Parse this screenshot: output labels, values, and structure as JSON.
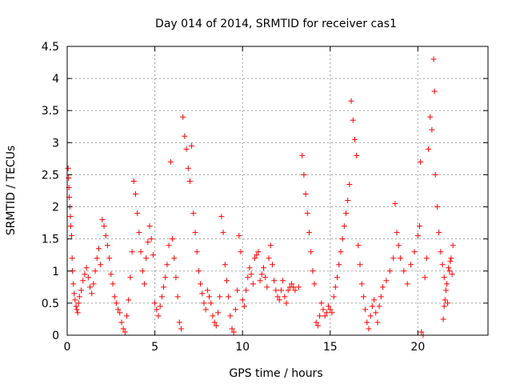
{
  "chart_data": {
    "type": "scatter",
    "title": "Day 014 of 2014, SRMTID for receiver cas1",
    "xlabel": "GPS time / hours",
    "ylabel": "SRMTID / TECUs",
    "xlim": [
      0,
      24
    ],
    "ylim": [
      0,
      4.5
    ],
    "grid": true,
    "marker": "+",
    "color": "#ff0000",
    "x_ticks": [
      0,
      5,
      10,
      15,
      20
    ],
    "x_tick_labels": [
      "0",
      "5",
      "10",
      "15",
      "20"
    ],
    "y_ticks": [
      0,
      0.5,
      1,
      1.5,
      2,
      2.5,
      3,
      3.5,
      4,
      4.5
    ],
    "y_tick_labels": [
      "0",
      "0.5",
      "1",
      "1.5",
      "2",
      "2.5",
      "3",
      "3.5",
      "4",
      "4.5"
    ],
    "series": [
      {
        "name": "SRMTID",
        "points": [
          [
            0.05,
            2.6
          ],
          [
            0.08,
            2.45
          ],
          [
            0.1,
            2.3
          ],
          [
            0.12,
            2.15
          ],
          [
            0.15,
            2.0
          ],
          [
            0.18,
            1.85
          ],
          [
            0.2,
            1.7
          ],
          [
            0.25,
            1.55
          ],
          [
            0.28,
            1.2
          ],
          [
            0.3,
            1.0
          ],
          [
            0.35,
            0.8
          ],
          [
            0.4,
            0.65
          ],
          [
            0.45,
            0.55
          ],
          [
            0.5,
            0.45
          ],
          [
            0.55,
            0.4
          ],
          [
            0.6,
            0.35
          ],
          [
            0.65,
            0.5
          ],
          [
            0.7,
            0.6
          ],
          [
            0.8,
            0.7
          ],
          [
            0.9,
            0.85
          ],
          [
            1.0,
            0.95
          ],
          [
            1.1,
            1.05
          ],
          [
            1.2,
            0.9
          ],
          [
            1.3,
            0.75
          ],
          [
            1.4,
            0.65
          ],
          [
            1.5,
            0.8
          ],
          [
            1.6,
            1.0
          ],
          [
            1.7,
            1.2
          ],
          [
            1.8,
            1.35
          ],
          [
            1.9,
            1.1
          ],
          [
            2.0,
            1.8
          ],
          [
            2.1,
            1.7
          ],
          [
            2.2,
            1.55
          ],
          [
            2.3,
            1.4
          ],
          [
            2.4,
            1.2
          ],
          [
            2.5,
            0.95
          ],
          [
            2.6,
            0.8
          ],
          [
            2.7,
            0.6
          ],
          [
            2.8,
            0.5
          ],
          [
            2.9,
            0.4
          ],
          [
            3.0,
            0.35
          ],
          [
            3.1,
            0.2
          ],
          [
            3.2,
            0.1
          ],
          [
            3.3,
            0.05
          ],
          [
            3.4,
            0.3
          ],
          [
            3.5,
            0.55
          ],
          [
            3.6,
            0.9
          ],
          [
            3.7,
            1.3
          ],
          [
            3.8,
            2.4
          ],
          [
            3.9,
            2.2
          ],
          [
            4.0,
            1.9
          ],
          [
            4.1,
            1.6
          ],
          [
            4.2,
            1.3
          ],
          [
            4.3,
            1.0
          ],
          [
            4.4,
            0.8
          ],
          [
            4.5,
            1.2
          ],
          [
            4.6,
            1.45
          ],
          [
            4.7,
            1.7
          ],
          [
            4.8,
            1.5
          ],
          [
            4.9,
            1.25
          ],
          [
            5.0,
            0.5
          ],
          [
            5.1,
            0.4
          ],
          [
            5.2,
            0.3
          ],
          [
            5.3,
            0.45
          ],
          [
            5.4,
            0.6
          ],
          [
            5.5,
            0.75
          ],
          [
            5.6,
            0.9
          ],
          [
            5.7,
            1.1
          ],
          [
            5.8,
            1.4
          ],
          [
            5.9,
            2.7
          ],
          [
            6.0,
            1.5
          ],
          [
            6.1,
            1.2
          ],
          [
            6.2,
            0.9
          ],
          [
            6.3,
            0.6
          ],
          [
            6.4,
            0.2
          ],
          [
            6.5,
            0.1
          ],
          [
            6.6,
            3.4
          ],
          [
            6.7,
            3.1
          ],
          [
            6.8,
            2.9
          ],
          [
            6.9,
            2.6
          ],
          [
            7.0,
            2.4
          ],
          [
            7.1,
            2.95
          ],
          [
            7.2,
            1.9
          ],
          [
            7.3,
            1.6
          ],
          [
            7.4,
            1.3
          ],
          [
            7.5,
            1.0
          ],
          [
            7.6,
            0.8
          ],
          [
            7.7,
            0.65
          ],
          [
            7.8,
            0.5
          ],
          [
            7.9,
            0.4
          ],
          [
            8.0,
            0.7
          ],
          [
            8.1,
            0.6
          ],
          [
            8.2,
            0.5
          ],
          [
            8.3,
            0.3
          ],
          [
            8.4,
            0.2
          ],
          [
            8.5,
            0.15
          ],
          [
            8.6,
            0.35
          ],
          [
            8.7,
            0.6
          ],
          [
            8.8,
            1.85
          ],
          [
            8.9,
            1.6
          ],
          [
            9.0,
            1.1
          ],
          [
            9.1,
            0.85
          ],
          [
            9.2,
            0.6
          ],
          [
            9.3,
            0.3
          ],
          [
            9.4,
            0.1
          ],
          [
            9.5,
            0.05
          ],
          [
            9.6,
            0.4
          ],
          [
            9.7,
            0.7
          ],
          [
            9.8,
            1.55
          ],
          [
            9.9,
            1.3
          ],
          [
            10.0,
            0.55
          ],
          [
            10.1,
            0.45
          ],
          [
            10.2,
            0.7
          ],
          [
            10.3,
            0.9
          ],
          [
            10.4,
            1.05
          ],
          [
            10.5,
            0.95
          ],
          [
            10.6,
            0.8
          ],
          [
            10.7,
            1.2
          ],
          [
            10.8,
            1.25
          ],
          [
            10.9,
            1.3
          ],
          [
            11.0,
            0.85
          ],
          [
            11.1,
            0.95
          ],
          [
            11.2,
            1.05
          ],
          [
            11.3,
            0.9
          ],
          [
            11.4,
            0.75
          ],
          [
            11.5,
            1.2
          ],
          [
            11.6,
            1.4
          ],
          [
            11.7,
            1.1
          ],
          [
            11.8,
            0.85
          ],
          [
            11.9,
            0.7
          ],
          [
            12.0,
            0.6
          ],
          [
            12.1,
            0.55
          ],
          [
            12.2,
            0.7
          ],
          [
            12.3,
            0.85
          ],
          [
            12.4,
            0.6
          ],
          [
            12.5,
            0.5
          ],
          [
            12.6,
            0.7
          ],
          [
            12.7,
            0.75
          ],
          [
            12.8,
            0.8
          ],
          [
            12.9,
            0.75
          ],
          [
            13.0,
            0.7
          ],
          [
            13.2,
            0.75
          ],
          [
            13.4,
            2.8
          ],
          [
            13.5,
            2.5
          ],
          [
            13.6,
            2.2
          ],
          [
            13.7,
            1.9
          ],
          [
            13.8,
            1.6
          ],
          [
            13.9,
            1.3
          ],
          [
            14.0,
            1.0
          ],
          [
            14.1,
            0.8
          ],
          [
            14.2,
            0.2
          ],
          [
            14.3,
            0.15
          ],
          [
            14.4,
            0.3
          ],
          [
            14.5,
            0.5
          ],
          [
            14.6,
            0.4
          ],
          [
            14.7,
            0.3
          ],
          [
            14.8,
            0.35
          ],
          [
            14.9,
            0.45
          ],
          [
            15.0,
            0.4
          ],
          [
            15.1,
            0.35
          ],
          [
            15.2,
            0.6
          ],
          [
            15.3,
            0.75
          ],
          [
            15.4,
            0.9
          ],
          [
            15.5,
            1.1
          ],
          [
            15.6,
            1.3
          ],
          [
            15.7,
            1.5
          ],
          [
            15.8,
            1.7
          ],
          [
            15.9,
            1.9
          ],
          [
            16.0,
            2.1
          ],
          [
            16.1,
            2.35
          ],
          [
            16.2,
            3.65
          ],
          [
            16.3,
            3.35
          ],
          [
            16.4,
            3.05
          ],
          [
            16.5,
            2.8
          ],
          [
            16.6,
            1.4
          ],
          [
            16.7,
            1.1
          ],
          [
            16.8,
            0.8
          ],
          [
            16.9,
            0.6
          ],
          [
            17.0,
            0.4
          ],
          [
            17.1,
            0.2
          ],
          [
            17.2,
            0.1
          ],
          [
            17.3,
            0.3
          ],
          [
            17.4,
            0.45
          ],
          [
            17.5,
            0.55
          ],
          [
            17.6,
            0.35
          ],
          [
            17.7,
            0.2
          ],
          [
            17.8,
            0.45
          ],
          [
            17.9,
            0.6
          ],
          [
            18.0,
            0.75
          ],
          [
            18.2,
            0.85
          ],
          [
            18.4,
            1.0
          ],
          [
            18.6,
            1.2
          ],
          [
            18.7,
            2.05
          ],
          [
            18.8,
            1.6
          ],
          [
            18.9,
            1.4
          ],
          [
            19.0,
            1.2
          ],
          [
            19.2,
            1.0
          ],
          [
            19.4,
            0.8
          ],
          [
            19.6,
            1.1
          ],
          [
            19.8,
            1.3
          ],
          [
            20.0,
            1.55
          ],
          [
            20.1,
            1.7
          ],
          [
            20.15,
            2.7
          ],
          [
            20.2,
            0.05
          ],
          [
            20.3,
            0.0
          ],
          [
            20.4,
            0.9
          ],
          [
            20.5,
            1.2
          ],
          [
            20.6,
            2.9
          ],
          [
            20.7,
            3.4
          ],
          [
            20.8,
            3.2
          ],
          [
            20.9,
            4.3
          ],
          [
            20.95,
            3.8
          ],
          [
            21.0,
            2.5
          ],
          [
            21.1,
            2.0
          ],
          [
            21.2,
            1.6
          ],
          [
            21.3,
            1.3
          ],
          [
            21.4,
            1.1
          ],
          [
            21.5,
            0.9
          ],
          [
            21.6,
            0.7
          ],
          [
            21.7,
            0.5
          ],
          [
            21.8,
            1.0
          ],
          [
            21.9,
            1.2
          ],
          [
            22.0,
            1.4
          ],
          [
            21.45,
            0.25
          ],
          [
            21.55,
            0.55
          ],
          [
            21.65,
            0.8
          ],
          [
            21.75,
            1.05
          ],
          [
            21.85,
            1.15
          ],
          [
            21.95,
            0.95
          ],
          [
            21.5,
            0.45
          ]
        ]
      }
    ]
  }
}
